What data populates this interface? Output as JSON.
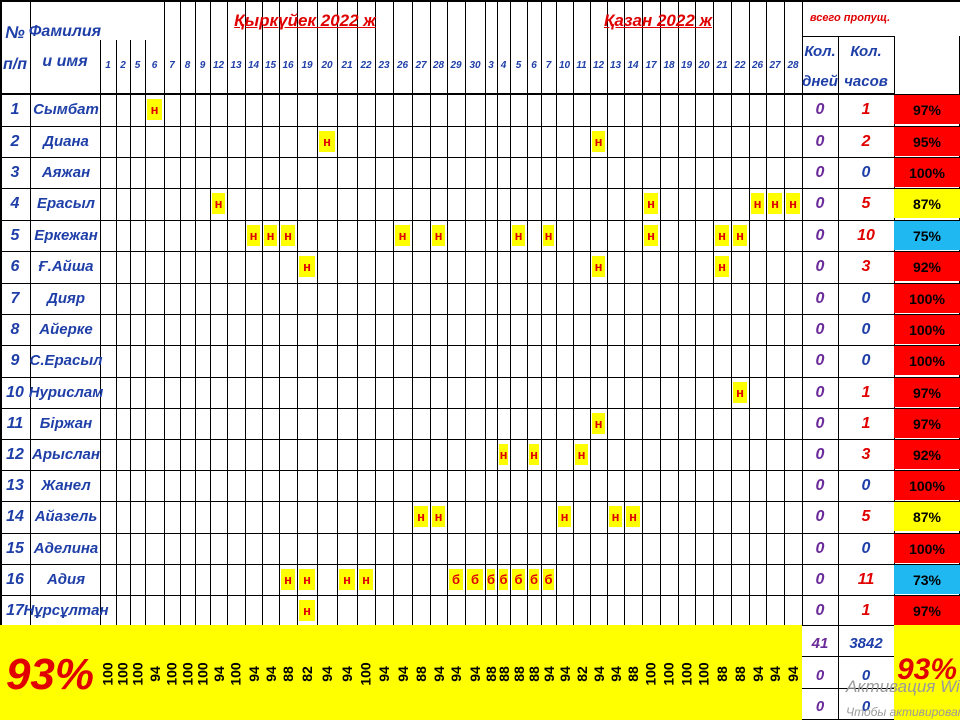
{
  "header": {
    "num": "№",
    "num2": "п/п",
    "name": "Фамилия",
    "name2": "и имя",
    "month1": "Қыркүйек 2022 ж",
    "month2": "Қазан 2022 ж",
    "total_title": "всего пропущ.",
    "days_label": "Кол.",
    "days_label2": "дней",
    "hours_label": "Кол.",
    "hours_label2": "часов"
  },
  "dates": [
    "1",
    "2",
    "5",
    "6",
    "7",
    "8",
    "9",
    "12",
    "13",
    "14",
    "15",
    "16",
    "19",
    "20",
    "21",
    "22",
    "23",
    "26",
    "27",
    "28",
    "29",
    "30",
    "3",
    "4",
    "5",
    "6",
    "7",
    "10",
    "11",
    "12",
    "13",
    "14",
    "17",
    "18",
    "19",
    "20",
    "21",
    "22",
    "26",
    "27",
    "28"
  ],
  "students": [
    {
      "num": "1",
      "name": "Сымбат",
      "days": "0",
      "hours": "1",
      "pct": "97%",
      "pct_color": "#FF0000",
      "marks": [
        {
          "col": 3,
          "v": "н"
        }
      ]
    },
    {
      "num": "2",
      "name": "Диана",
      "days": "0",
      "hours": "2",
      "pct": "95%",
      "pct_color": "#FF0000",
      "marks": [
        {
          "col": 13,
          "v": "н"
        },
        {
          "col": 29,
          "v": "н"
        }
      ]
    },
    {
      "num": "3",
      "name": "Аяжан",
      "days": "0",
      "hours": "0",
      "pct": "100%",
      "pct_color": "#FF0000",
      "marks": []
    },
    {
      "num": "4",
      "name": "Ерасыл",
      "days": "0",
      "hours": "5",
      "pct": "87%",
      "pct_color": "#FFFF00",
      "marks": [
        {
          "col": 7,
          "v": "н"
        },
        {
          "col": 32,
          "v": "н"
        },
        {
          "col": 38,
          "v": "н"
        },
        {
          "col": 39,
          "v": "н"
        },
        {
          "col": 40,
          "v": "н"
        }
      ]
    },
    {
      "num": "5",
      "name": "Еркежан",
      "days": "0",
      "hours": "10",
      "pct": "75%",
      "pct_color": "#1FB8F0",
      "marks": [
        {
          "col": 9,
          "v": "н"
        },
        {
          "col": 10,
          "v": "н"
        },
        {
          "col": 11,
          "v": "н"
        },
        {
          "col": 17,
          "v": "н"
        },
        {
          "col": 19,
          "v": "н"
        },
        {
          "col": 24,
          "v": "н"
        },
        {
          "col": 26,
          "v": "н"
        },
        {
          "col": 32,
          "v": "н"
        },
        {
          "col": 36,
          "v": "н"
        },
        {
          "col": 37,
          "v": "н"
        }
      ]
    },
    {
      "num": "6",
      "name": "Ғ.Айша",
      "days": "0",
      "hours": "3",
      "pct": "92%",
      "pct_color": "#FF0000",
      "marks": [
        {
          "col": 12,
          "v": "н"
        },
        {
          "col": 29,
          "v": "н"
        },
        {
          "col": 36,
          "v": "н"
        }
      ]
    },
    {
      "num": "7",
      "name": "Дияр",
      "days": "0",
      "hours": "0",
      "pct": "100%",
      "pct_color": "#FF0000",
      "marks": []
    },
    {
      "num": "8",
      "name": "Айерке",
      "days": "0",
      "hours": "0",
      "pct": "100%",
      "pct_color": "#FF0000",
      "marks": []
    },
    {
      "num": "9",
      "name": "С.Ерасыл",
      "days": "0",
      "hours": "0",
      "pct": "100%",
      "pct_color": "#FF0000",
      "marks": []
    },
    {
      "num": "10",
      "name": "Нурислам",
      "days": "0",
      "hours": "1",
      "pct": "97%",
      "pct_color": "#FF0000",
      "marks": [
        {
          "col": 37,
          "v": "н"
        }
      ]
    },
    {
      "num": "11",
      "name": "Біржан",
      "days": "0",
      "hours": "1",
      "pct": "97%",
      "pct_color": "#FF0000",
      "marks": [
        {
          "col": 29,
          "v": "н"
        }
      ]
    },
    {
      "num": "12",
      "name": "Арыслан",
      "days": "0",
      "hours": "3",
      "pct": "92%",
      "pct_color": "#FF0000",
      "marks": [
        {
          "col": 23,
          "v": "н"
        },
        {
          "col": 25,
          "v": "н"
        },
        {
          "col": 28,
          "v": "н"
        }
      ]
    },
    {
      "num": "13",
      "name": "Жанел",
      "days": "0",
      "hours": "0",
      "pct": "100%",
      "pct_color": "#FF0000",
      "marks": []
    },
    {
      "num": "14",
      "name": "Айазель",
      "days": "0",
      "hours": "5",
      "pct": "87%",
      "pct_color": "#FFFF00",
      "marks": [
        {
          "col": 18,
          "v": "н"
        },
        {
          "col": 19,
          "v": "н"
        },
        {
          "col": 27,
          "v": "н"
        },
        {
          "col": 30,
          "v": "н"
        },
        {
          "col": 31,
          "v": "н"
        }
      ]
    },
    {
      "num": "15",
      "name": "Аделина",
      "days": "0",
      "hours": "0",
      "pct": "100%",
      "pct_color": "#FF0000",
      "marks": []
    },
    {
      "num": "16",
      "name": "Адия",
      "days": "0",
      "hours": "11",
      "pct": "73%",
      "pct_color": "#1FB8F0",
      "marks": [
        {
          "col": 11,
          "v": "н"
        },
        {
          "col": 12,
          "v": "н"
        },
        {
          "col": 14,
          "v": "н"
        },
        {
          "col": 15,
          "v": "н"
        },
        {
          "col": 20,
          "v": "б"
        },
        {
          "col": 21,
          "v": "б"
        },
        {
          "col": 22,
          "v": "б"
        },
        {
          "col": 23,
          "v": "б"
        },
        {
          "col": 24,
          "v": "б"
        },
        {
          "col": 25,
          "v": "б"
        },
        {
          "col": 26,
          "v": "б"
        }
      ]
    },
    {
      "num": "17",
      "name": "Нұрсұлтан",
      "days": "0",
      "hours": "1",
      "pct": "97%",
      "pct_color": "#FF0000",
      "marks": [
        {
          "col": 12,
          "v": "н"
        }
      ]
    }
  ],
  "summary": {
    "big_pct": "93%",
    "right_pct": "93%",
    "total_days": "41",
    "total_hours": "3842",
    "extra_days_1": "0",
    "extra_hours_1": "0",
    "extra_days_2": "0",
    "extra_hours_2": "0",
    "daily": [
      "100",
      "100",
      "100",
      "94",
      "100",
      "100",
      "100",
      "94",
      "100",
      "94",
      "94",
      "88",
      "82",
      "94",
      "94",
      "100",
      "94",
      "94",
      "88",
      "94",
      "94",
      "94",
      "88",
      "88",
      "88",
      "88",
      "94",
      "94",
      "82",
      "94",
      "94",
      "88",
      "100",
      "100",
      "100",
      "100",
      "88",
      "88",
      "94",
      "94",
      "94"
    ]
  },
  "watermark": {
    "line1": "Активация Windo",
    "line2": "Чтобы активировать"
  },
  "colors": {
    "blue_text": "#1F3FA8",
    "red_text": "#E00000",
    "mark_bg": "#FFFF00",
    "summary_bg": "#FFFF00"
  }
}
